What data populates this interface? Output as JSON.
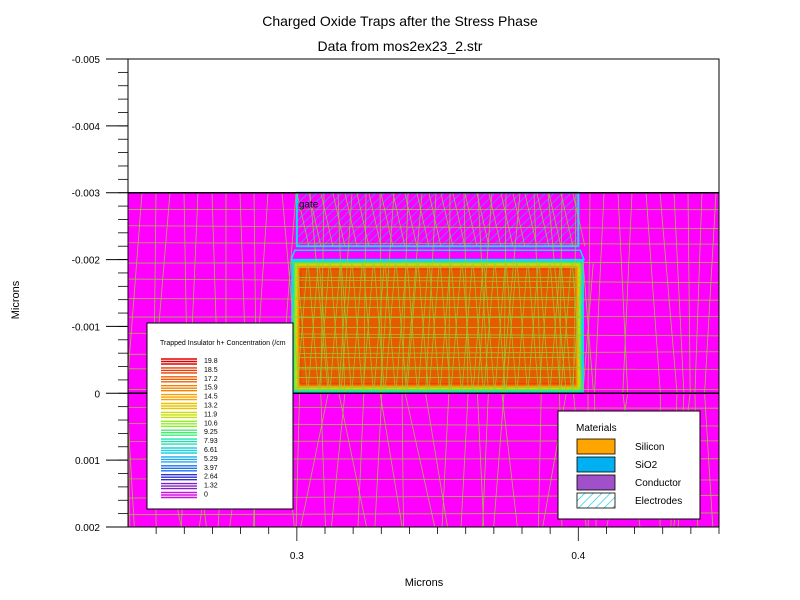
{
  "chart_data": {
    "type": "heatmap",
    "title": "Charged Oxide Traps after the Stress Phase",
    "subtitle": "Data from mos2ex23_2.str",
    "xlabel": "Microns",
    "ylabel": "Microns",
    "xlim": [
      0.24,
      0.45
    ],
    "ylim": [
      -0.005,
      0.002
    ],
    "y_inverted": true,
    "x_ticks": [
      "0.3",
      "0.4"
    ],
    "y_ticks": [
      "-0.005",
      "-0.004",
      "-0.003",
      "-0.002",
      "-0.001",
      "0",
      "0.001",
      "0.002"
    ],
    "regions": [
      {
        "name": "silicon-below",
        "x": [
          0.24,
          0.45
        ],
        "y": [
          0.0,
          0.002
        ]
      },
      {
        "name": "oxide-around",
        "x": [
          0.24,
          0.45
        ],
        "y": [
          -0.003,
          0.0
        ]
      },
      {
        "name": "gate",
        "label": "gate",
        "x": [
          0.3,
          0.4
        ],
        "y": [
          -0.003,
          -0.0022
        ]
      },
      {
        "name": "charged-oxide",
        "x": [
          0.298,
          0.402
        ],
        "y": [
          -0.002,
          0.0
        ]
      }
    ],
    "gate_label": "gate",
    "colorbar": {
      "title": "Trapped Insulator h+ Concentration (/cm",
      "levels": [
        "19.8",
        "18.5",
        "17.2",
        "15.9",
        "14.5",
        "13.2",
        "11.9",
        "10.6",
        "9.25",
        "7.93",
        "6.61",
        "5.29",
        "3.97",
        "2.64",
        "1.32",
        "0"
      ],
      "colors": [
        "#e00000",
        "#ea3d00",
        "#f06000",
        "#f58000",
        "#f9a000",
        "#e8c400",
        "#c8dd00",
        "#90ee20",
        "#40ee70",
        "#20e0b0",
        "#20d0e0",
        "#20a8f0",
        "#1e70f0",
        "#3030d0",
        "#8020c8",
        "#d010e0"
      ]
    },
    "materials_legend": {
      "title": "Materials",
      "items": [
        {
          "label": "Silicon",
          "color": "#ffa500"
        },
        {
          "label": "SiO2",
          "color": "#00b0f0"
        },
        {
          "label": "Conductor",
          "color": "#a050c8"
        },
        {
          "label": "Electrodes",
          "color": "hatched-cyan"
        }
      ]
    },
    "colors": {
      "magenta_fill": "#ff00ff",
      "mesh_line": "#9acd32",
      "gate_outline": "#00e5ff"
    }
  }
}
